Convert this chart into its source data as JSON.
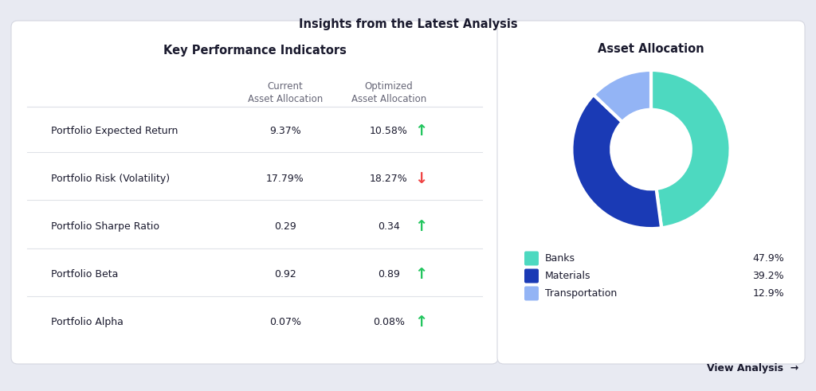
{
  "title": "Insights from the Latest Analysis",
  "bg_color": "#e8eaf2",
  "card_color": "#ffffff",
  "kpi_title": "Key Performance Indicators",
  "col1_header_line1": "Current",
  "col1_header_line2": "Asset Allocation",
  "col2_header_line1": "Optimized",
  "col2_header_line2": "Asset Allocation",
  "kpi_rows": [
    {
      "label": "Portfolio Expected Return",
      "current": "9.37%",
      "optimized": "10.58%",
      "arrow": "up",
      "arrow_color": "#22c55e"
    },
    {
      "label": "Portfolio Risk (Volatility)",
      "current": "17.79%",
      "optimized": "18.27%",
      "arrow": "down",
      "arrow_color": "#ef4444"
    },
    {
      "label": "Portfolio Sharpe Ratio",
      "current": "0.29",
      "optimized": "0.34",
      "arrow": "up",
      "arrow_color": "#22c55e"
    },
    {
      "label": "Portfolio Beta",
      "current": "0.92",
      "optimized": "0.89",
      "arrow": "up",
      "arrow_color": "#22c55e"
    },
    {
      "label": "Portfolio Alpha",
      "current": "0.07%",
      "optimized": "0.08%",
      "arrow": "up",
      "arrow_color": "#22c55e"
    }
  ],
  "donut_title": "Asset Allocation",
  "donut_slices": [
    47.9,
    39.2,
    12.9
  ],
  "donut_colors": [
    "#4dd9c0",
    "#1a3ab5",
    "#93b4f5"
  ],
  "donut_labels": [
    "Banks",
    "Materials",
    "Transportation"
  ],
  "donut_pcts": [
    "47.9%",
    "39.2%",
    "12.9%"
  ],
  "view_analysis_text": "View Analysis  →",
  "label_color": "#1a1a2e",
  "header_color": "#666677",
  "line_color": "#e0e2e8",
  "card_edge_color": "#d4d6e0"
}
